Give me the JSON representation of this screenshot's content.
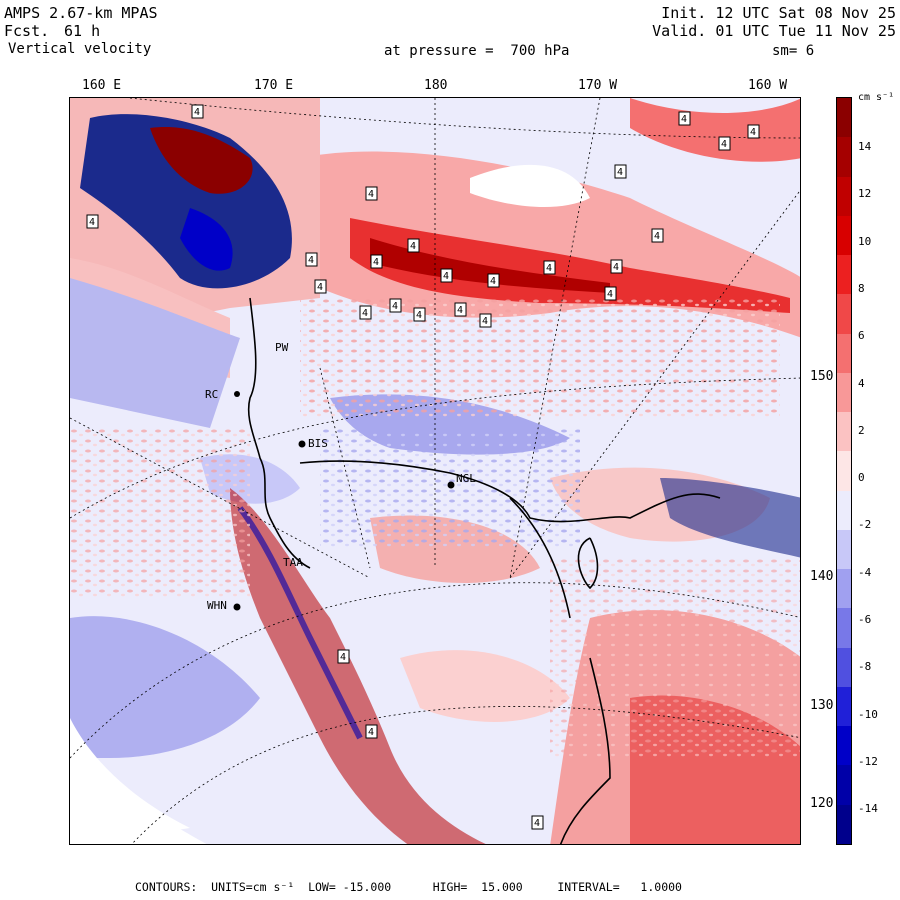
{
  "header": {
    "model": "AMPS 2.67-km MPAS",
    "forecast_label": "Fcst.",
    "forecast_hour": "61 h",
    "field": "Vertical velocity",
    "init": "Init. 12 UTC Sat 08 Nov 25",
    "valid": "Valid. 01 UTC Tue 11 Nov 25",
    "level": "at pressure =  700 hPa",
    "smoothing": "sm= 6"
  },
  "lon_labels": [
    "160 E",
    "170 E",
    "180",
    "170 W",
    "160 W"
  ],
  "lat_labels": [
    "150 W",
    "140 W",
    "130 W",
    "120 W"
  ],
  "stations": [
    "BIS",
    "NGL",
    "WHN",
    "PW",
    "RC",
    "TAA"
  ],
  "contour_label": "4",
  "colorbar": {
    "units": "cm s⁻¹",
    "ticks": [
      "14",
      "12",
      "10",
      "8",
      "6",
      "4",
      "2",
      "0",
      "-2",
      "-4",
      "-6",
      "-8",
      "-10",
      "-12",
      "-14"
    ],
    "colors": [
      "#8b0000",
      "#a50000",
      "#c00000",
      "#d80000",
      "#ec2020",
      "#f04848",
      "#f47070",
      "#f89898",
      "#fbc2c2",
      "#fde6e6",
      "#ececfc",
      "#c8c8f8",
      "#a0a0f0",
      "#7878e8",
      "#5050e0",
      "#2020d8",
      "#0000c8",
      "#0000a8",
      "#00008c"
    ]
  },
  "footer": "CONTOURS:  UNITS=cm s⁻¹  LOW= -15.000      HIGH=  15.000     INTERVAL=   1.0000"
}
